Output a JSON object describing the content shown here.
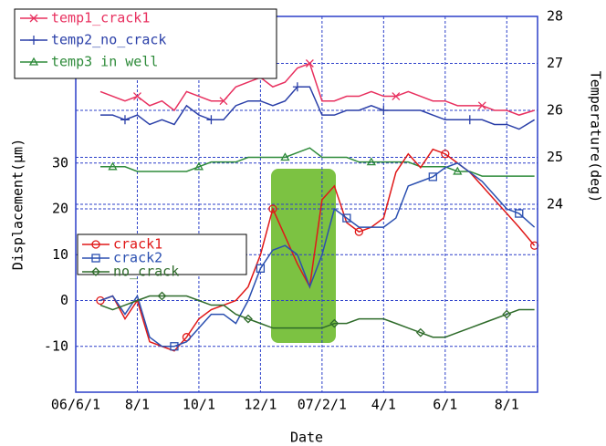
{
  "chart_data": {
    "type": "line",
    "xlabel": "Date",
    "ylabel": "Displacement(μm)",
    "y2label": "Temperature(deg)",
    "xlim": [
      0,
      15
    ],
    "xticks": [
      {
        "value": 0,
        "label": "06/6/1"
      },
      {
        "value": 2,
        "label": "8/1"
      },
      {
        "value": 4,
        "label": "10/1"
      },
      {
        "value": 6,
        "label": "12/1"
      },
      {
        "value": 8,
        "label": "07/2/1"
      },
      {
        "value": 10,
        "label": "4/1"
      },
      {
        "value": 12,
        "label": "6/1"
      },
      {
        "value": 14,
        "label": "8/1"
      }
    ],
    "ylim": [
      -20,
      62
    ],
    "yticks": [
      -10,
      0,
      10,
      20,
      30
    ],
    "y2lim": [
      20,
      28
    ],
    "y2ticks": [
      24,
      25,
      26,
      27,
      28
    ],
    "grid": true,
    "x": [
      0.8,
      1.2,
      1.6,
      2.0,
      2.4,
      2.8,
      3.2,
      3.6,
      4.0,
      4.4,
      4.8,
      5.2,
      5.6,
      6.0,
      6.4,
      6.8,
      7.2,
      7.6,
      8.0,
      8.4,
      8.8,
      9.2,
      9.6,
      10.0,
      10.4,
      10.8,
      11.2,
      11.6,
      12.0,
      12.4,
      12.8,
      13.2,
      13.6,
      14.0,
      14.4,
      14.9
    ],
    "series": [
      {
        "name": "temp1_crack1",
        "color": "#e8305f",
        "marker": "x",
        "axis": "y2",
        "values": [
          26.4,
          26.3,
          26.2,
          26.3,
          26.1,
          26.2,
          26.0,
          26.4,
          26.3,
          26.2,
          26.2,
          26.5,
          26.6,
          26.7,
          26.5,
          26.6,
          26.9,
          27.0,
          26.2,
          26.2,
          26.3,
          26.3,
          26.4,
          26.3,
          26.3,
          26.4,
          26.3,
          26.2,
          26.2,
          26.1,
          26.1,
          26.1,
          26.0,
          26.0,
          25.9,
          26.0
        ]
      },
      {
        "name": "temp2_no_crack",
        "color": "#2a3fa8",
        "marker": "+",
        "axis": "y2",
        "values": [
          25.9,
          25.9,
          25.8,
          25.9,
          25.7,
          25.8,
          25.7,
          26.1,
          25.9,
          25.8,
          25.8,
          26.1,
          26.2,
          26.2,
          26.1,
          26.2,
          26.5,
          26.5,
          25.9,
          25.9,
          26.0,
          26.0,
          26.1,
          26.0,
          26.0,
          26.0,
          26.0,
          25.9,
          25.8,
          25.8,
          25.8,
          25.8,
          25.7,
          25.7,
          25.6,
          25.8
        ]
      },
      {
        "name": "temp3 in well",
        "color": "#2e8b3a",
        "marker": "triangle",
        "axis": "y2",
        "values": [
          24.8,
          24.8,
          24.8,
          24.7,
          24.7,
          24.7,
          24.7,
          24.7,
          24.8,
          24.9,
          24.9,
          24.9,
          25.0,
          25.0,
          25.0,
          25.0,
          25.1,
          25.2,
          25.0,
          25.0,
          25.0,
          24.9,
          24.9,
          24.9,
          24.9,
          24.9,
          24.8,
          24.8,
          24.8,
          24.7,
          24.7,
          24.6,
          24.6,
          24.6,
          24.6,
          24.6
        ]
      },
      {
        "name": "crack1",
        "color": "#e01818",
        "marker": "circle",
        "axis": "y",
        "values": [
          0,
          1,
          -4,
          0,
          -9,
          -10,
          -11,
          -8,
          -4,
          -2,
          -1,
          0,
          3,
          10,
          20,
          14,
          8,
          3,
          22,
          25,
          17,
          15,
          16,
          18,
          28,
          32,
          29,
          33,
          32,
          30,
          28,
          25,
          22,
          19,
          16,
          12
        ]
      },
      {
        "name": "crack2",
        "color": "#2a4fb0",
        "marker": "square",
        "axis": "y",
        "values": [
          0,
          1,
          -3,
          1,
          -8,
          -10,
          -10,
          -9,
          -6,
          -3,
          -3,
          -5,
          0,
          7,
          11,
          12,
          10,
          3,
          10,
          20,
          18,
          16,
          16,
          16,
          18,
          25,
          26,
          27,
          29,
          30,
          28,
          26,
          23,
          20,
          19,
          16
        ]
      },
      {
        "name": "no_crack",
        "color": "#2e6b2a",
        "marker": "diamond",
        "axis": "y",
        "values": [
          -1,
          -2,
          -1,
          0,
          1,
          1,
          1,
          1,
          0,
          -1,
          -1,
          -3,
          -4,
          -5,
          -6,
          -6,
          -6,
          -6,
          -6,
          -5,
          -5,
          -4,
          -4,
          -4,
          -5,
          -6,
          -7,
          -8,
          -8,
          -7,
          -6,
          -5,
          -4,
          -3,
          -2,
          -2
        ]
      }
    ]
  }
}
